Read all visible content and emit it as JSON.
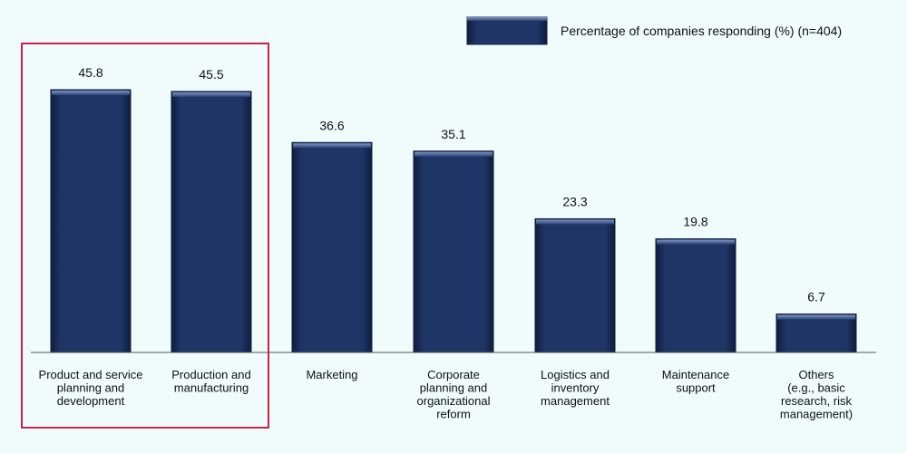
{
  "chart_data": {
    "type": "bar",
    "categories": [
      [
        "Product and service",
        "planning and",
        "development"
      ],
      [
        "Production and",
        "manufacturing"
      ],
      [
        "Marketing"
      ],
      [
        "Corporate",
        "planning and",
        "organizational",
        "reform"
      ],
      [
        "Logistics and",
        "inventory",
        "management"
      ],
      [
        "Maintenance",
        "support"
      ],
      [
        "Others",
        "(e.g., basic",
        "research, risk",
        "management)"
      ]
    ],
    "series": [
      {
        "name": "Percentage of companies responding (%) (n=404)",
        "values": [
          45.8,
          45.5,
          36.6,
          35.1,
          23.3,
          19.8,
          6.7
        ]
      }
    ],
    "ylim": [
      0,
      50
    ],
    "legend_position": "top-right",
    "highlighted_categories": [
      0,
      1
    ],
    "grid": false
  },
  "colors": {
    "background": "#f0fcfc",
    "bar_fill": "#1f3566",
    "bar_top": "#6a7fae",
    "bar_edge": "#0f1d40",
    "highlight_border": "#c8234a",
    "axis": "#555555"
  }
}
